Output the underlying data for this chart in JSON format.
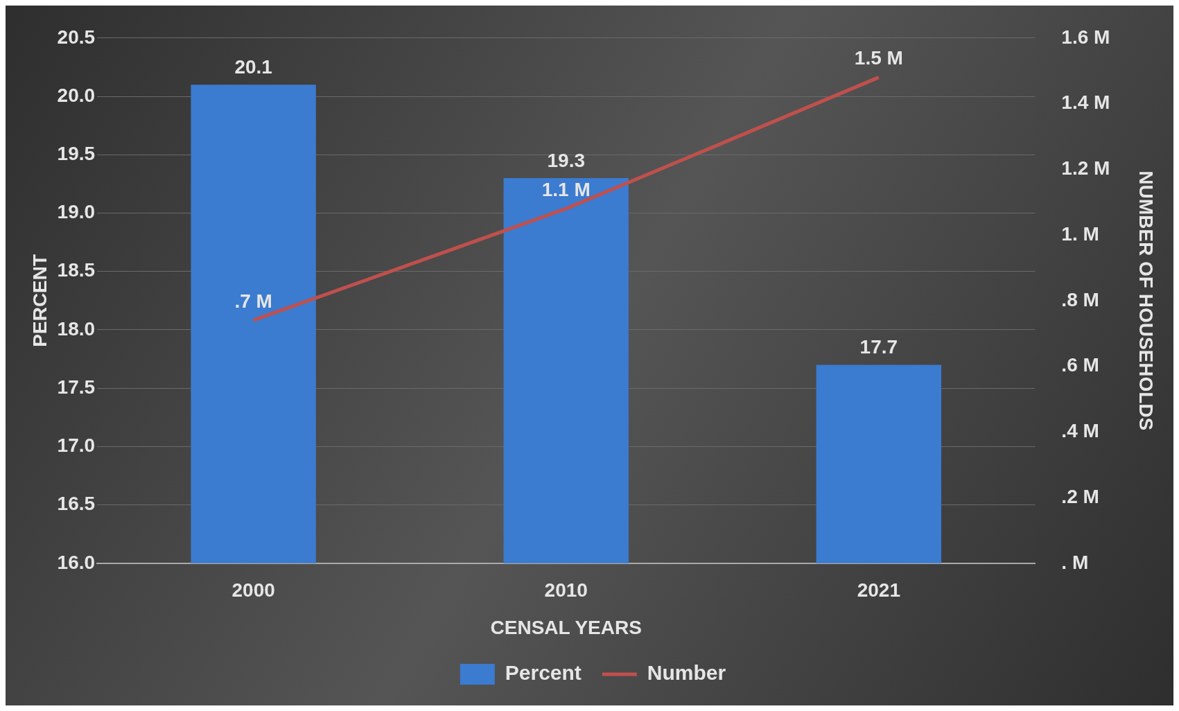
{
  "chart_data": {
    "type": "bar",
    "categories": [
      "2000",
      "2010",
      "2021"
    ],
    "xlabel": "CENSAL YEARS",
    "ylabel": "PERCENT",
    "y2label": "NUMBER OF HOUSEHOLDS",
    "series": [
      {
        "name": "Percent",
        "color": "#3b7bd0",
        "values": [
          20.1,
          19.3,
          17.7
        ],
        "value_labels": [
          "20.1",
          "19.3",
          "17.7"
        ]
      },
      {
        "name": "Number",
        "type": "line",
        "axis": "y2",
        "color": "#c0504d",
        "values": [
          0.74,
          1.08,
          1.48
        ],
        "value_labels": [
          ".7 M",
          "1.1 M",
          "1.5 M"
        ]
      }
    ],
    "ylim": [
      16,
      20.5
    ],
    "yticks": [
      {
        "value": 16,
        "label": "16.0"
      },
      16.5,
      {
        "value": 17,
        "label": "17.0"
      },
      17.5,
      {
        "value": 18,
        "label": "18.0"
      },
      18.5,
      {
        "value": 19,
        "label": "19.0"
      },
      19.5,
      {
        "value": 20,
        "label": "20.0"
      },
      20.5
    ],
    "y2lim": [
      0,
      1.6
    ],
    "y2ticks": [
      {
        "value": 0,
        "label": ". M"
      },
      {
        "value": 0.2,
        "label": ".2 M"
      },
      {
        "value": 0.4,
        "label": ".4 M"
      },
      {
        "value": 0.6,
        "label": ".6 M"
      },
      {
        "value": 0.8,
        "label": ".8 M"
      },
      {
        "value": 1,
        "label": "1. M"
      },
      {
        "value": 1.2,
        "label": "1.2 M"
      },
      {
        "value": 1.4,
        "label": "1.4 M"
      },
      {
        "value": 1.6,
        "label": "1.6 M"
      }
    ],
    "grid": "y",
    "legend": "bottom",
    "marker": "none",
    "line_style": "solid"
  }
}
